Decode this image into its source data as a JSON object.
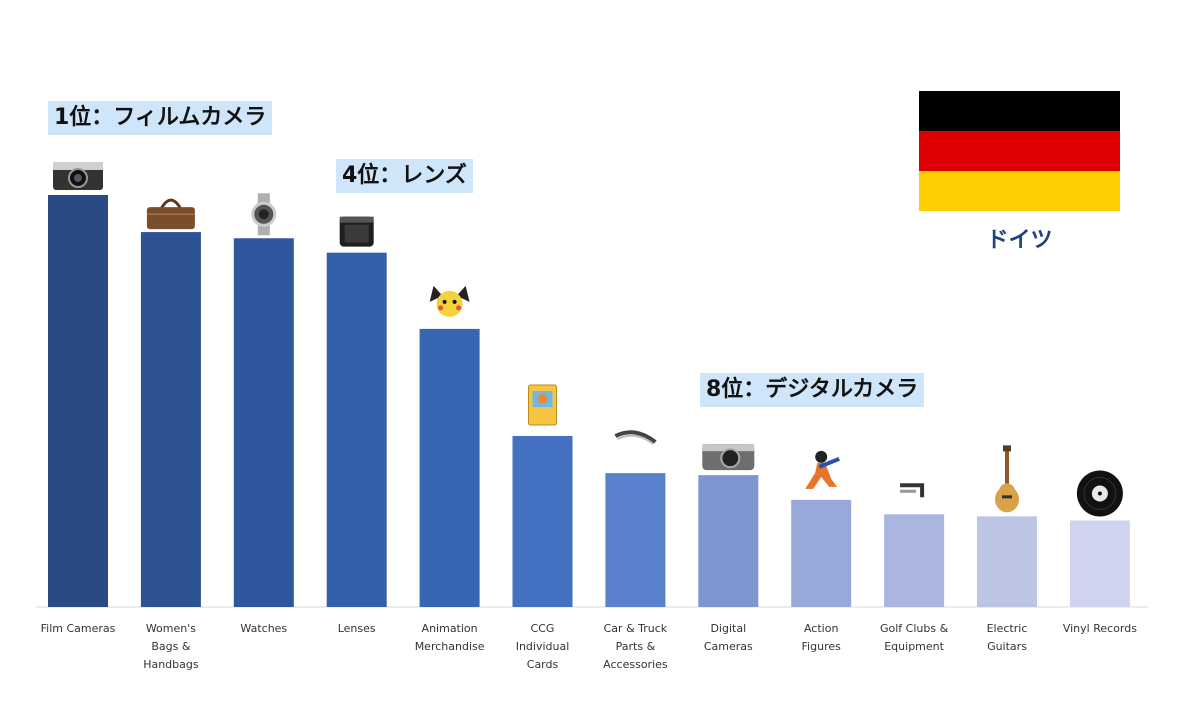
{
  "chart_data": {
    "type": "bar",
    "categories": [
      "Film Cameras",
      "Women's Bags & Handbags",
      "Watches",
      "Lenses",
      "Animation Merchandise",
      "CCG Individual Cards",
      "Car & Truck Parts & Accessories",
      "Digital Cameras",
      "Action Figures",
      "Golf Clubs & Equipment",
      "Electric Guitars",
      "Vinyl Records"
    ],
    "category_lines": [
      [
        "Film Cameras"
      ],
      [
        "Women's",
        "Bags &",
        "Handbags"
      ],
      [
        "Watches"
      ],
      [
        "Lenses"
      ],
      [
        "Animation",
        "Merchandise"
      ],
      [
        "CCG",
        "Individual",
        "Cards"
      ],
      [
        "Car & Truck",
        "Parts &",
        "Accessories"
      ],
      [
        "Digital",
        "Cameras"
      ],
      [
        "Action",
        "Figures"
      ],
      [
        "Golf Clubs &",
        "Equipment"
      ],
      [
        "Electric",
        "Guitars"
      ],
      [
        "Vinyl Records"
      ]
    ],
    "values": [
      100,
      91,
      89.5,
      86,
      67.5,
      41.5,
      32.5,
      32,
      26,
      22.5,
      22,
      21
    ],
    "colors": [
      "#2a4a82",
      "#2d5394",
      "#2f579e",
      "#3360a8",
      "#3766b3",
      "#4470c2",
      "#5a82cc",
      "#7d96cf",
      "#98a8d9",
      "#aab6df",
      "#bcc5e6",
      "#cfd4ee"
    ],
    "icons": [
      "film-camera-icon",
      "handbag-icon",
      "watch-icon",
      "lens-icon",
      "pichu-figure-icon",
      "trading-card-icon",
      "car-part-icon",
      "digital-camera-icon",
      "action-figure-icon",
      "golf-club-icon",
      "electric-guitar-icon",
      "vinyl-record-icon"
    ],
    "ylim": [
      0,
      100
    ],
    "title": "",
    "xlabel": "",
    "ylabel": "",
    "grid": false,
    "legend": "none"
  },
  "annotations": {
    "rank1": "1位：フィルムカメラ",
    "rank4": "4位：レンズ",
    "rank8": "8位：デジタルカメラ"
  },
  "flag": {
    "name": "germany-flag",
    "colors": [
      "#000000",
      "#dd0000",
      "#ffce00"
    ]
  },
  "country": "ドイツ"
}
